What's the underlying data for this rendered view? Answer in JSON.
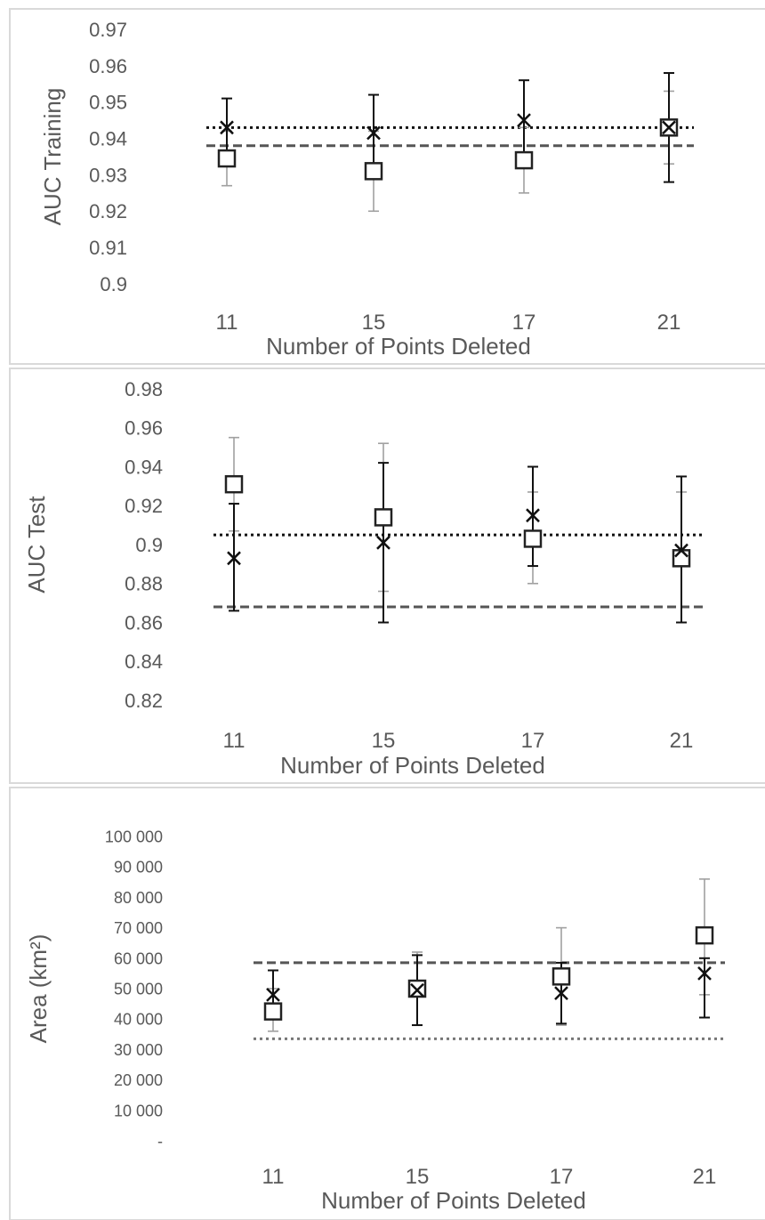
{
  "chart_data": [
    {
      "type": "scatter",
      "title": "",
      "xlabel": "Number of Points Deleted",
      "ylabel": "AUC Training",
      "categories": [
        "11",
        "15",
        "17",
        "21"
      ],
      "ylim": [
        0.9,
        0.97
      ],
      "yticks": [
        "0.97",
        "0.96",
        "0.95",
        "0.94",
        "0.93",
        "0.92",
        "0.91",
        "0.9"
      ],
      "series": [
        {
          "marker": "square",
          "color": "#222222",
          "errorColor": "#a0a0a0",
          "values": [
            0.9345,
            0.931,
            0.934,
            0.943
          ],
          "err_low": [
            0.927,
            0.92,
            0.925,
            0.933
          ],
          "err_high": [
            0.942,
            0.942,
            0.943,
            0.953
          ]
        },
        {
          "marker": "x",
          "color": "#111111",
          "errorColor": "#111111",
          "values": [
            0.943,
            0.9415,
            0.945,
            0.943
          ],
          "err_low": [
            0.935,
            0.931,
            0.933,
            0.928
          ],
          "err_high": [
            0.951,
            0.952,
            0.956,
            0.958
          ]
        }
      ],
      "reference_lines": [
        {
          "style": "dashed",
          "color": "#555555",
          "value": 0.938
        },
        {
          "style": "dotted",
          "color": "#111111",
          "value": 0.943
        }
      ],
      "legend": "none",
      "grid": false
    },
    {
      "type": "scatter",
      "title": "",
      "xlabel": "Number of Points Deleted",
      "ylabel": "AUC Test",
      "categories": [
        "11",
        "15",
        "17",
        "21"
      ],
      "ylim": [
        0.82,
        0.98
      ],
      "yticks": [
        "0.98",
        "0.96",
        "0.94",
        "0.92",
        "0.9",
        "0.88",
        "0.86",
        "0.84",
        "0.82"
      ],
      "series": [
        {
          "marker": "square",
          "color": "#222222",
          "errorColor": "#a0a0a0",
          "values": [
            0.931,
            0.914,
            0.903,
            0.893
          ],
          "err_low": [
            0.907,
            0.876,
            0.88,
            0.86
          ],
          "err_high": [
            0.955,
            0.952,
            0.927,
            0.927
          ]
        },
        {
          "marker": "x",
          "color": "#111111",
          "errorColor": "#111111",
          "values": [
            0.893,
            0.901,
            0.915,
            0.897
          ],
          "err_low": [
            0.866,
            0.86,
            0.889,
            0.86
          ],
          "err_high": [
            0.921,
            0.942,
            0.94,
            0.935
          ]
        }
      ],
      "reference_lines": [
        {
          "style": "dashed",
          "color": "#555555",
          "value": 0.868
        },
        {
          "style": "dotted",
          "color": "#111111",
          "value": 0.905
        }
      ],
      "legend": "none",
      "grid": false
    },
    {
      "type": "scatter",
      "title": "",
      "xlabel": "Number of Points Deleted",
      "ylabel": "Area (km²)",
      "categories": [
        "11",
        "15",
        "17",
        "21"
      ],
      "ylim": [
        0,
        100000
      ],
      "yticks": [
        "100 000",
        "90 000",
        "80 000",
        "70 000",
        "60 000",
        "50 000",
        "40 000",
        "30 000",
        "20 000",
        "10 000",
        "-"
      ],
      "series": [
        {
          "marker": "square",
          "color": "#222222",
          "errorColor": "#a0a0a0",
          "values": [
            42500,
            50000,
            54000,
            67500
          ],
          "err_low": [
            36000,
            38000,
            38000,
            48000
          ],
          "err_high": [
            50000,
            62000,
            70000,
            86000
          ]
        },
        {
          "marker": "x",
          "color": "#111111",
          "errorColor": "#111111",
          "values": [
            48000,
            49500,
            48500,
            55000
          ],
          "err_low": [
            40500,
            38000,
            38500,
            40500
          ],
          "err_high": [
            56000,
            61000,
            58500,
            60000
          ]
        }
      ],
      "reference_lines": [
        {
          "style": "dashed",
          "color": "#555555",
          "value": 58500
        },
        {
          "style": "dotted",
          "color": "#777777",
          "value": 33500
        }
      ],
      "legend": "none",
      "grid": false
    }
  ]
}
